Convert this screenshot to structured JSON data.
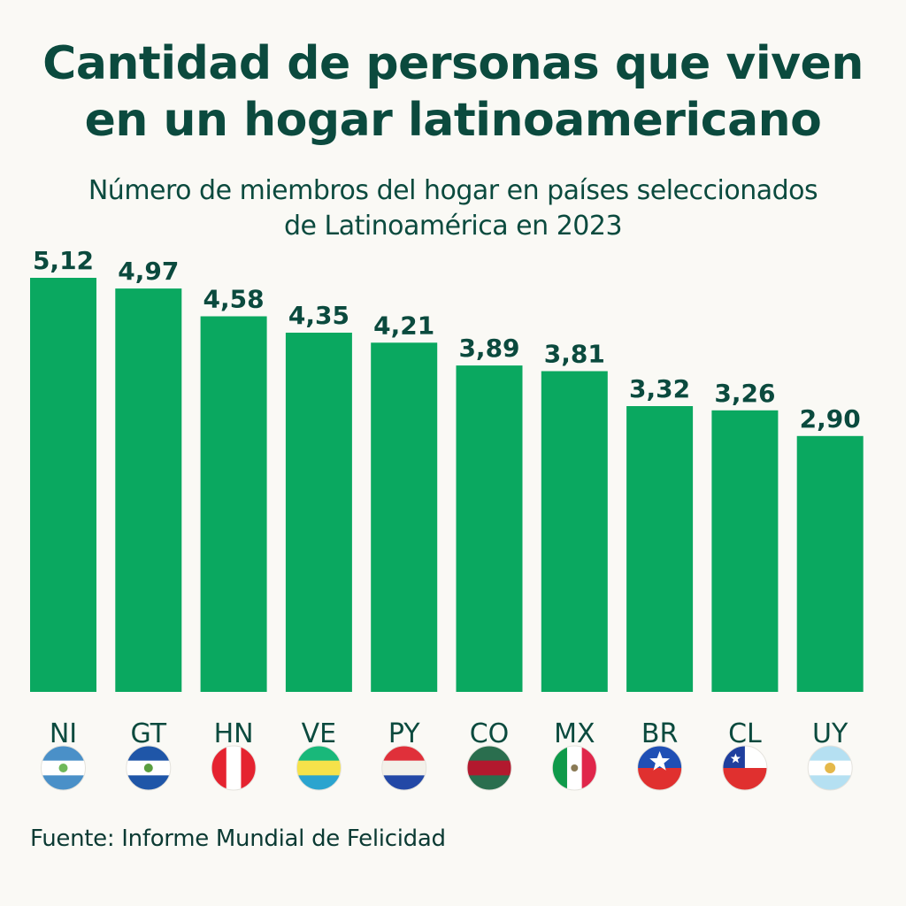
{
  "header": {
    "title_line1": "Cantidad de personas que viven",
    "title_line2": "en un hogar latinoamericano",
    "subtitle_line1": "Número de miembros del hogar en países seleccionados",
    "subtitle_line2": "de Latinoamérica en 2023"
  },
  "footer": {
    "source": "Fuente: Informe Mundial de Felicidad"
  },
  "colors": {
    "bar": "#0aa860",
    "text": "#0b4a3e",
    "background": "#faf9f5"
  },
  "chart_data": {
    "type": "bar",
    "title": "Cantidad de personas que viven en un hogar latinoamericano",
    "subtitle": "Número de miembros del hogar en países seleccionados de Latinoamérica en 2023",
    "xlabel": "",
    "ylabel": "",
    "categories": [
      "NI",
      "GT",
      "HN",
      "VE",
      "PY",
      "CO",
      "MX",
      "BR",
      "CL",
      "UY"
    ],
    "values": [
      5.12,
      4.97,
      4.58,
      4.35,
      4.21,
      3.89,
      3.81,
      3.32,
      3.26,
      2.9
    ],
    "value_labels": [
      "5,12",
      "4,97",
      "4,58",
      "4,35",
      "4,21",
      "3,89",
      "3,81",
      "3,32",
      "3,26",
      "2,90"
    ],
    "flags": [
      "nicaragua-flag",
      "el-salvador-flag",
      "peru-flag",
      "gabon-flag",
      "netherlands-flag",
      "striped-green-red-flag",
      "mexico-flag",
      "chile-style-flag",
      "chile-flag",
      "argentina-flag"
    ],
    "ylim": [
      -0.69,
      5.12
    ],
    "grid": false,
    "legend": "none",
    "source": "Fuente: Informe Mundial de Felicidad"
  }
}
